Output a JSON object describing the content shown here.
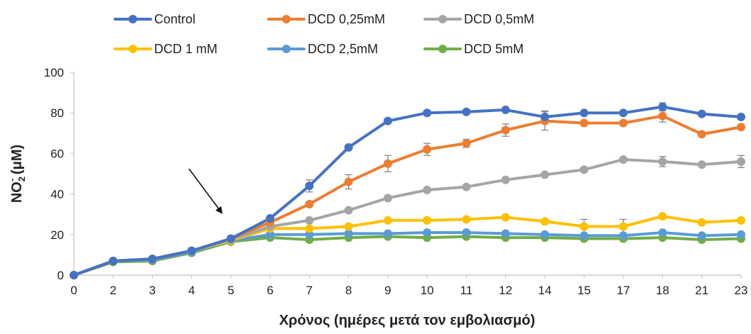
{
  "chart_data": {
    "type": "line",
    "title": "",
    "xlabel": "Χρόνος (ημέρες μετά τον εμβολιασμό)",
    "ylabel_main": "NO",
    "ylabel_sub": "2",
    "ylabel_sup": "-",
    "ylabel_unit": " (μM)",
    "ylim": [
      0,
      100
    ],
    "yticks": [
      "0",
      "20",
      "40",
      "60",
      "80",
      "100"
    ],
    "categories": [
      "0",
      "2",
      "3",
      "4",
      "5",
      "6",
      "7",
      "8",
      "9",
      "10",
      "11",
      "12",
      "14",
      "15",
      "17",
      "18",
      "21",
      "23"
    ],
    "grid": false,
    "legend_position": "top",
    "series": [
      {
        "name": "Control",
        "color": "#4472C4",
        "values": [
          0,
          7,
          8,
          12,
          18,
          28,
          44,
          63,
          76,
          80,
          80.5,
          81.5,
          78,
          80,
          80,
          83,
          79.5,
          78
        ],
        "errors": [
          0,
          0,
          0,
          0,
          0,
          0,
          3,
          0,
          0,
          0,
          0,
          0,
          3,
          0,
          0,
          2,
          0,
          0
        ]
      },
      {
        "name": "DCD 0,25mM",
        "color": "#ED7D31",
        "values": [
          0,
          7,
          8,
          12,
          18,
          26,
          35,
          46,
          55,
          62,
          65,
          71.5,
          76,
          75,
          75,
          78.5,
          69.5,
          73
        ],
        "errors": [
          0,
          0,
          0,
          0,
          0,
          0,
          0,
          3.5,
          4,
          3,
          2,
          3,
          4.5,
          0,
          0,
          3,
          0,
          0
        ]
      },
      {
        "name": "DCD 0,5mM",
        "color": "#A5A5A5",
        "values": [
          0,
          7,
          8,
          12,
          17.5,
          24,
          27,
          32,
          38,
          42,
          43.5,
          47,
          49.5,
          52,
          57,
          56,
          54.5,
          56
        ],
        "errors": [
          0,
          0,
          0,
          0,
          0,
          0,
          0,
          0,
          0,
          0,
          0,
          0,
          0,
          0,
          0,
          2.5,
          0,
          3
        ]
      },
      {
        "name": "DCD 1 mM",
        "color": "#FFC000",
        "values": [
          0,
          7,
          8,
          12,
          17,
          23,
          23,
          24,
          27,
          27,
          27.5,
          28.5,
          26.5,
          24,
          24,
          29,
          26,
          27
        ],
        "errors": [
          0,
          0,
          0,
          0,
          0,
          0,
          0,
          0,
          0,
          0,
          0,
          0,
          0,
          3.5,
          3.5,
          0,
          0,
          0
        ]
      },
      {
        "name": "DCD 2,5mM",
        "color": "#5B9BD5",
        "values": [
          0,
          7,
          7.5,
          11.5,
          17,
          20,
          20,
          20.5,
          20.5,
          21,
          21,
          20.5,
          20,
          19.5,
          19.5,
          21,
          19.5,
          20
        ],
        "errors": [
          0,
          0,
          0,
          0,
          0,
          0,
          0,
          0,
          0,
          0,
          0,
          0,
          0,
          0,
          0,
          0,
          0,
          0
        ]
      },
      {
        "name": "DCD 5mM",
        "color": "#70AD47",
        "values": [
          0,
          6.5,
          7,
          11,
          16.5,
          18.5,
          17.5,
          18.5,
          19,
          18.5,
          19,
          18.5,
          18.5,
          18,
          18,
          18.5,
          17.5,
          18
        ],
        "errors": [
          0,
          0,
          0,
          0,
          0,
          0,
          0,
          0,
          0,
          0,
          0,
          0,
          0,
          0,
          0,
          0,
          0,
          0
        ]
      }
    ],
    "annotation": {
      "type": "arrow",
      "description": "arrow pointing at day 5"
    }
  }
}
